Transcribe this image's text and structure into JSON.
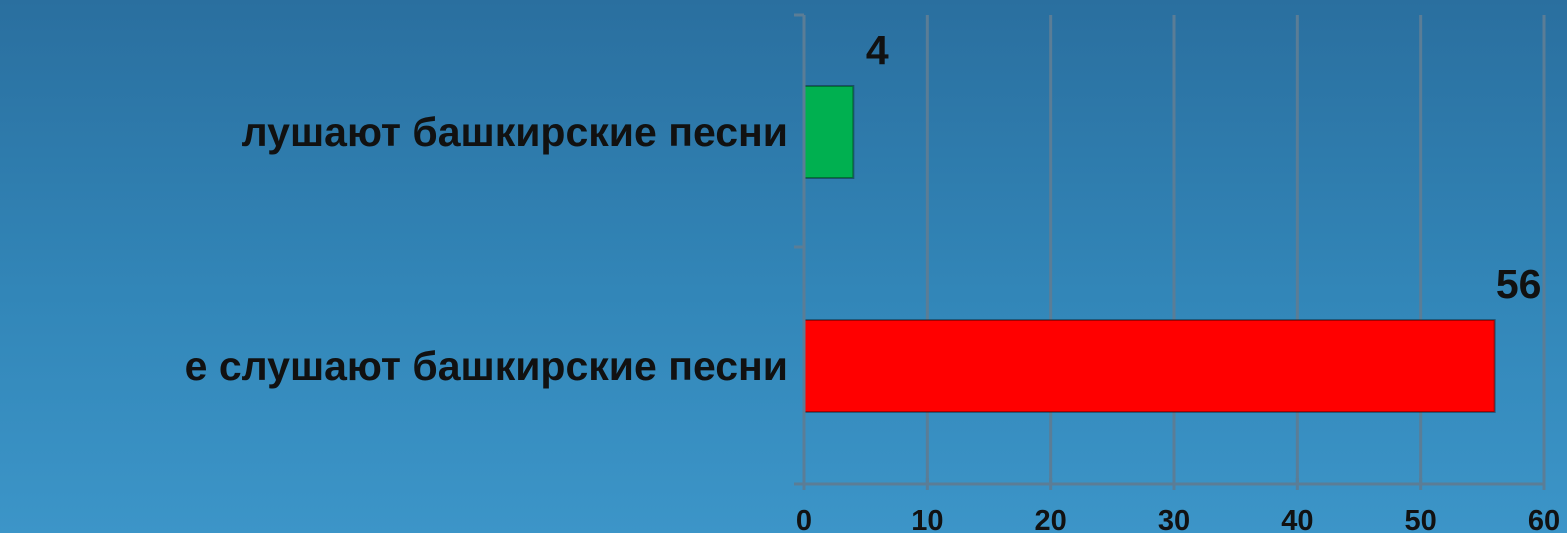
{
  "chart_data": {
    "type": "bar",
    "orientation": "horizontal",
    "categories": [
      "лушают башкирские песни",
      "е слушают башкирские песни"
    ],
    "values": [
      4,
      56
    ],
    "colors": [
      "#00b050",
      "#ff0000"
    ],
    "data_labels": [
      "4",
      "56"
    ],
    "xlim": [
      0,
      60
    ],
    "x_ticks": [
      "0",
      "10",
      "20",
      "30",
      "40",
      "50",
      "60"
    ],
    "grid": true,
    "title": "",
    "xlabel": "",
    "ylabel": ""
  }
}
